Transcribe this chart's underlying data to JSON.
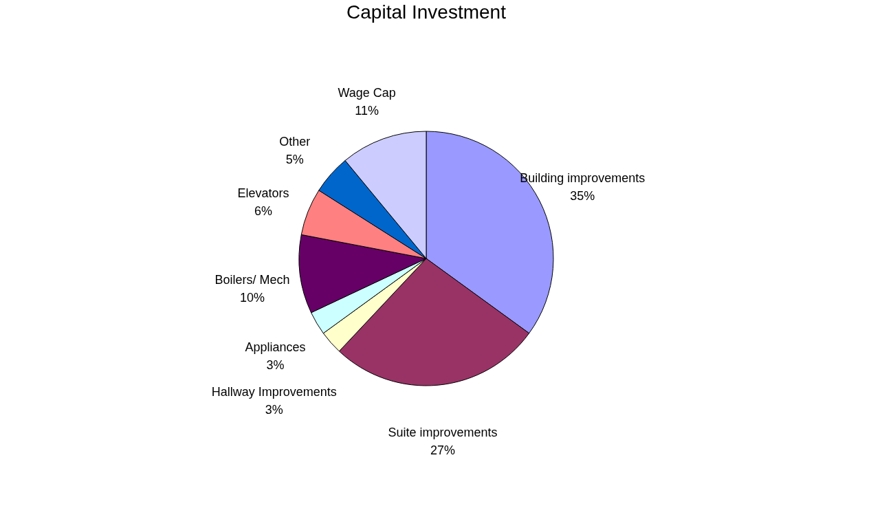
{
  "chart_data": {
    "type": "pie",
    "title": "Capital Investment",
    "categories": [
      "Building improvements",
      "Suite improvements",
      "Hallway Improvements",
      "Appliances",
      "Boilers/ Mech",
      "Elevators",
      "Other",
      "Wage Cap"
    ],
    "values": [
      35,
      27,
      3,
      3,
      10,
      6,
      5,
      11
    ],
    "value_labels": [
      "35%",
      "27%",
      "3%",
      "3%",
      "10%",
      "6%",
      "5%",
      "11%"
    ],
    "colors": [
      "#9999ff",
      "#993366",
      "#ffffcc",
      "#ccffff",
      "#660066",
      "#ff8080",
      "#0066cc",
      "#ccccff"
    ],
    "legend": false
  }
}
